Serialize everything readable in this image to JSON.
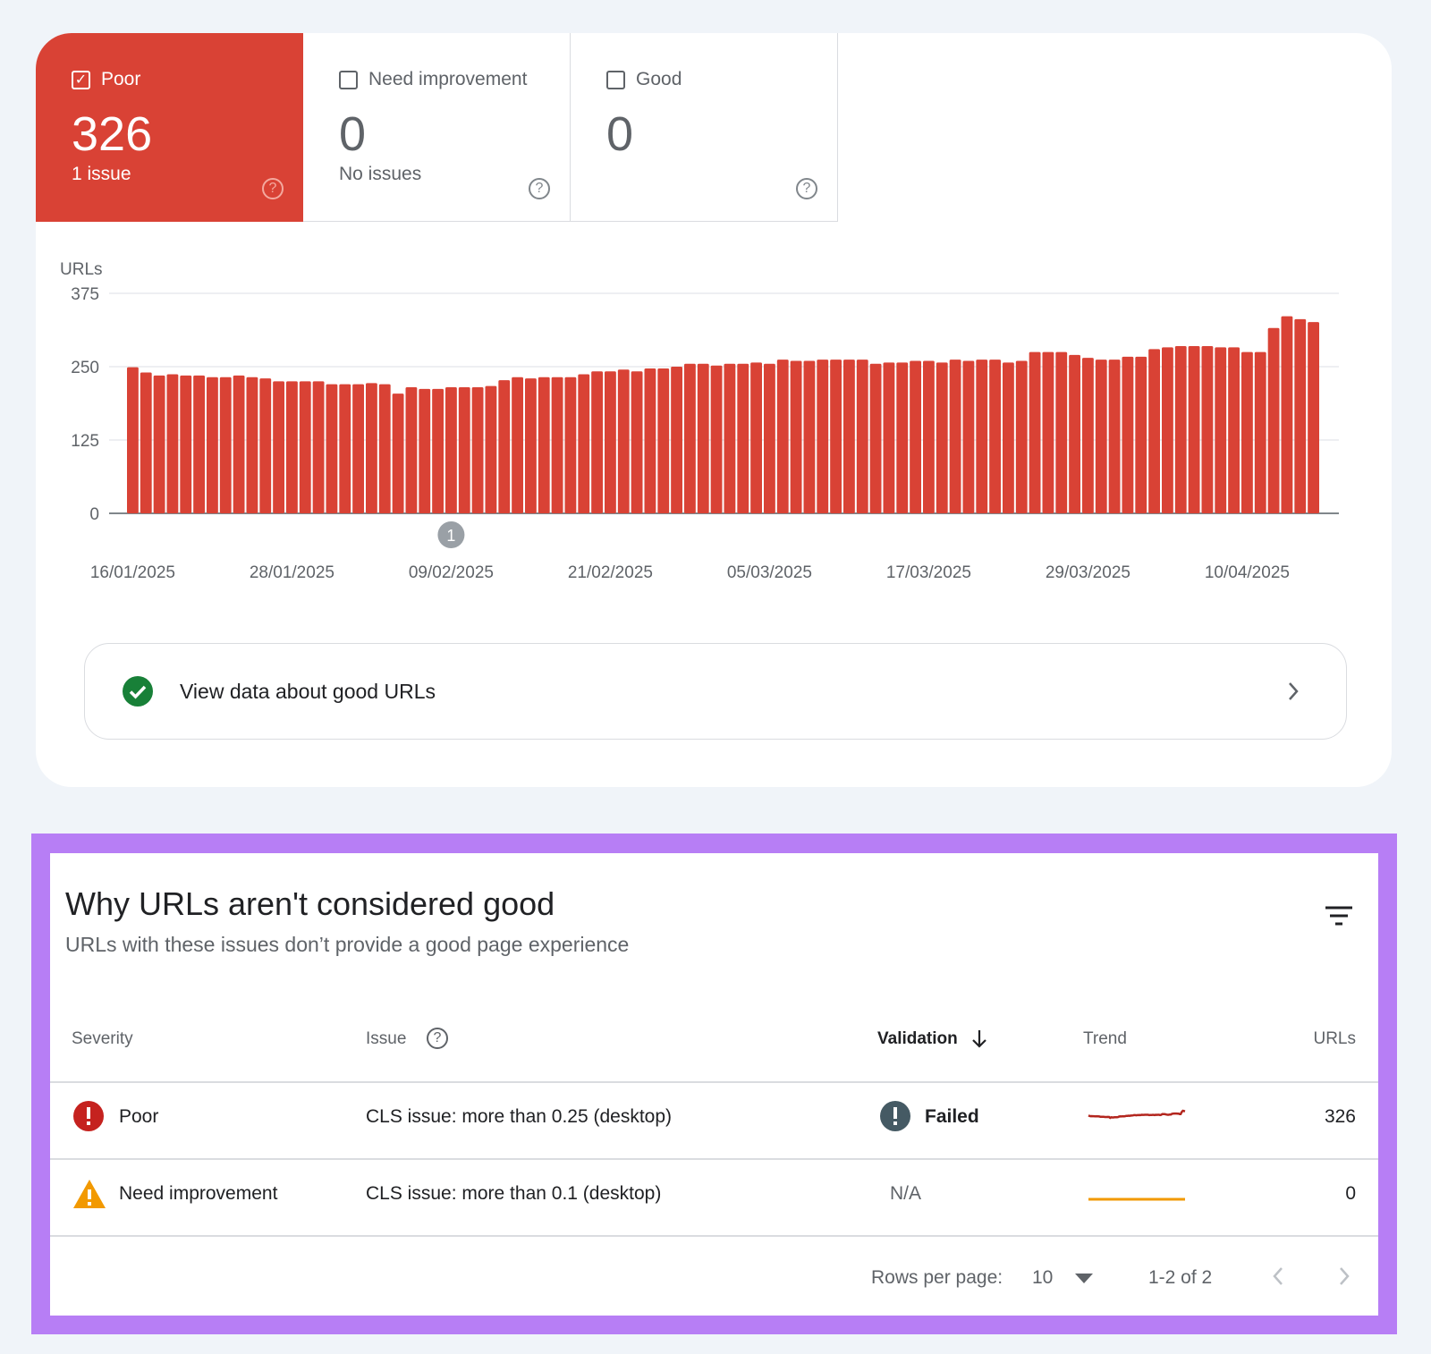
{
  "tiles": [
    {
      "label": "Poor",
      "count": "326",
      "sub": "1 issue",
      "checked": true
    },
    {
      "label": "Need improvement",
      "count": "0",
      "sub": "No issues",
      "checked": false
    },
    {
      "label": "Good",
      "count": "0",
      "sub": "",
      "checked": false
    }
  ],
  "chart_data": {
    "type": "bar",
    "ylabel": "URLs",
    "ylim": [
      0,
      375
    ],
    "yticks": [
      0,
      125,
      250,
      375
    ],
    "grid": true,
    "color": "#d94235",
    "x_start": "16/01/2025",
    "x_end": "15/04/2025",
    "xtick_labels": [
      "16/01/2025",
      "28/01/2025",
      "09/02/2025",
      "21/02/2025",
      "05/03/2025",
      "17/03/2025",
      "29/03/2025",
      "10/04/2025"
    ],
    "values": [
      249,
      240,
      235,
      237,
      235,
      235,
      232,
      232,
      235,
      232,
      230,
      225,
      225,
      225,
      225,
      220,
      220,
      220,
      222,
      220,
      204,
      215,
      212,
      212,
      215,
      215,
      215,
      217,
      227,
      232,
      230,
      232,
      232,
      232,
      237,
      242,
      242,
      245,
      242,
      247,
      247,
      250,
      255,
      255,
      252,
      255,
      255,
      257,
      255,
      262,
      260,
      260,
      262,
      262,
      262,
      262,
      255,
      257,
      257,
      260,
      260,
      257,
      262,
      260,
      262,
      262,
      257,
      260,
      275,
      275,
      275,
      270,
      265,
      262,
      262,
      267,
      267,
      280,
      283,
      285,
      285,
      285,
      283,
      283,
      275,
      275,
      316,
      336,
      331,
      326
    ],
    "annotation": {
      "label": "1",
      "date": "09/02/2025"
    }
  },
  "good_urls": {
    "label": "View data about good URLs"
  },
  "issues": {
    "title": "Why URLs aren't considered good",
    "subtitle": "URLs with these issues don’t provide a good page experience",
    "columns": [
      "Severity",
      "Issue",
      "Validation",
      "Trend",
      "URLs"
    ],
    "rows": [
      {
        "severity": "Poor",
        "issue": "CLS issue: more than 0.25 (desktop)",
        "validation": "Failed",
        "urls": "326",
        "trend_color": "#b3261e"
      },
      {
        "severity": "Need improvement",
        "issue": "CLS issue: more than 0.1 (desktop)",
        "validation": "N/A",
        "urls": "0",
        "trend_color": "#f29900"
      }
    ],
    "footer": {
      "rows_label": "Rows per page:",
      "rows_value": "10",
      "range": "1-2 of 2"
    }
  }
}
